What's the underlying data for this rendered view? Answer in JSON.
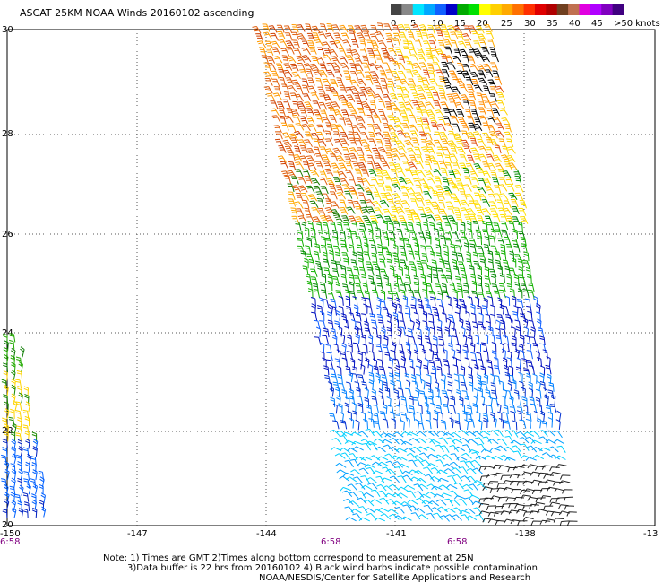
{
  "title": "ASCAT 25KM NOAA Winds 20160102 ascending",
  "colorbar": {
    "labels": [
      "0",
      "5",
      "10",
      "15",
      "20",
      "25",
      "30",
      "35",
      "40",
      "45",
      ">50 knots"
    ],
    "colors": [
      "#444444",
      "#888888",
      "#00e5ff",
      "#00a8ff",
      "#1060ff",
      "#0000c8",
      "#00aa00",
      "#00e000",
      "#ffff00",
      "#ffd000",
      "#ffaa00",
      "#ff7000",
      "#ff3000",
      "#e00000",
      "#b00000",
      "#704020",
      "#c07050",
      "#e000e0",
      "#b000ff",
      "#8000c0",
      "#400080"
    ]
  },
  "map": {
    "lat_labels": [
      "30",
      "28",
      "26",
      "24",
      "22",
      "20"
    ],
    "lon_labels": [
      "-150",
      "-147",
      "-144",
      "-141",
      "-138",
      "-13"
    ],
    "time_labels": [
      "6:58",
      "6:58",
      "6:58"
    ]
  },
  "notes": {
    "line1": "Note: 1) Times are GMT 2)Times along bottom correspond to measurement at 25N",
    "line2": "3)Data buffer is 22 hrs from 20160102 4) Black wind barbs indicate possible contamination",
    "line3": "NOAA/NESDIS/Center for Satellite Applications and Research"
  }
}
